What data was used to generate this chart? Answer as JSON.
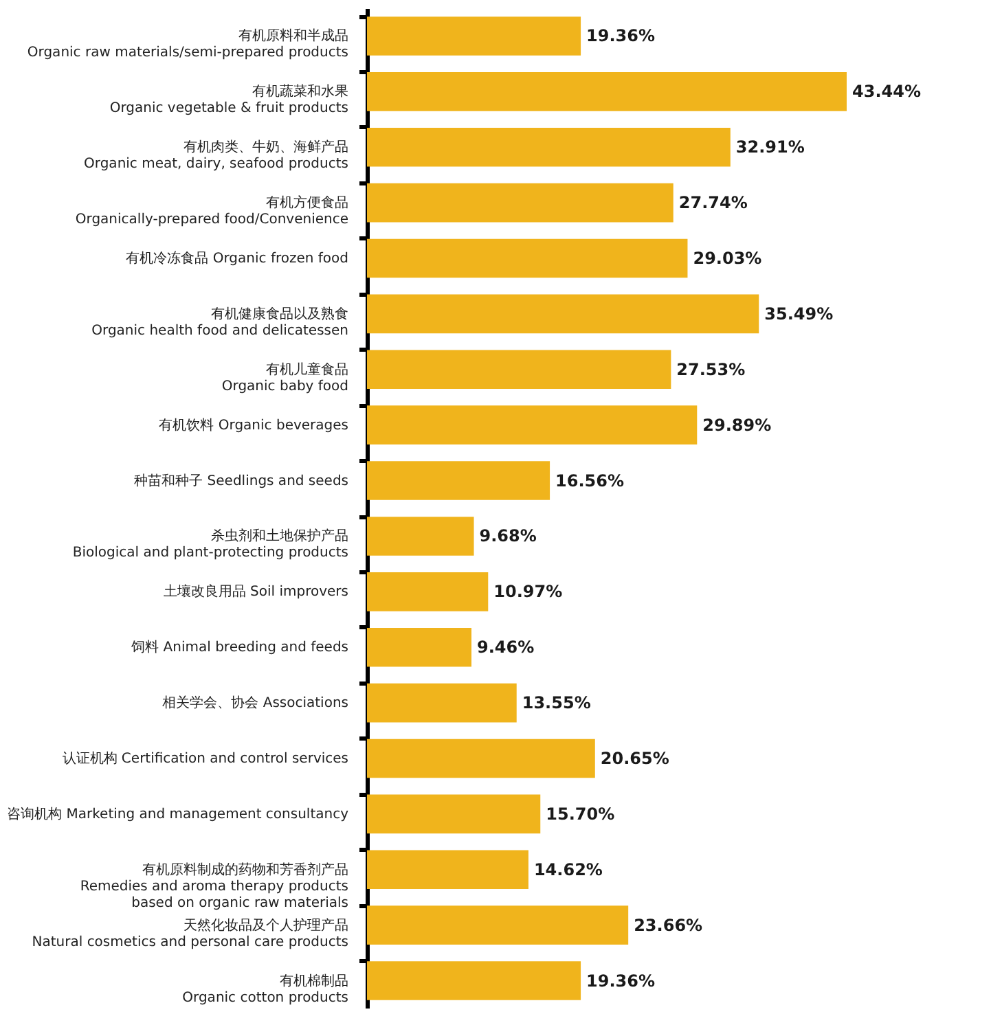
{
  "chart_data": {
    "type": "bar",
    "orientation": "horizontal",
    "color": "#f0b41c",
    "value_labels": [
      "19.36%",
      "43.44%",
      "32.91%",
      "27.74%",
      "29.03%",
      "35.49%",
      "27.53%",
      "29.89%",
      "16.56%",
      "9.68%",
      "10.97%",
      "9.46%",
      "13.55%",
      "20.65%",
      "15.70%",
      "14.62%",
      "23.66%",
      "19.36%"
    ],
    "categories": [
      "有机原料和半成品\nOrganic raw materials/semi-prepared products",
      "有机蔬菜和水果\nOrganic vegetable & fruit products",
      "有机肉类、牛奶、海鲜产品\nOrganic meat, dairy, seafood products",
      "有机方便食品\nOrganically-prepared food/Convenience",
      "有机冷冻食品 Organic frozen food",
      "有机健康食品以及熟食\nOrganic health food and delicatessen",
      "有机儿童食品\nOrganic baby food",
      "有机饮料 Organic beverages",
      "种苗和种子 Seedlings and seeds",
      "杀虫剂和土地保护产品\nBiological and plant-protecting products",
      "土壤改良用品 Soil improvers",
      "饲料 Animal breeding and feeds",
      "相关学会、协会 Associations",
      "认证机构 Certification and control services",
      "咨询机构 Marketing and management consultancy",
      "有机原料制成的药物和芳香剂产品\nRemedies and aroma therapy products\nbased on organic raw materials",
      "天然化妆品及个人护理产品\nNatural cosmetics and personal care products",
      "有机棉制品\nOrganic cotton products"
    ],
    "values": [
      19.36,
      43.44,
      32.91,
      27.74,
      29.03,
      35.49,
      27.53,
      29.89,
      16.56,
      9.68,
      10.97,
      9.46,
      13.55,
      20.65,
      15.7,
      14.62,
      23.66,
      19.36
    ]
  }
}
